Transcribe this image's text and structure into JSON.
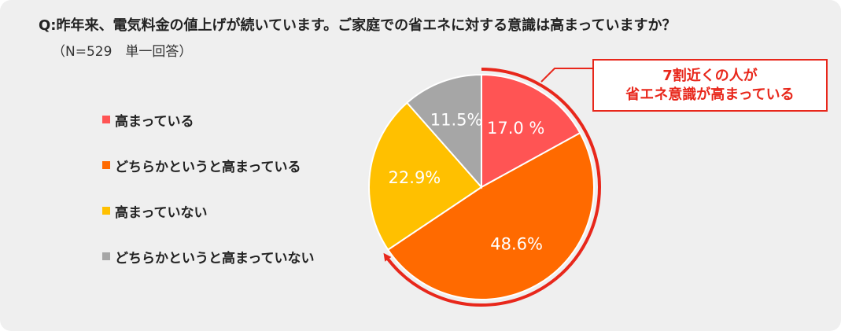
{
  "question": "Q:昨年来、電気料金の値上げが続いています。ご家庭での省エネに対する意識は高まっていますか？",
  "sample_note": "（N=529　単一回答）",
  "callout": {
    "line1": "7割近くの人が",
    "line2": "省エネ意識が高まっている"
  },
  "colors": {
    "accent": "#e8271b",
    "panel": "#efefef"
  },
  "chart_data": {
    "type": "pie",
    "unit": "%",
    "legend_position": "left",
    "slices": [
      {
        "label": "高まっている",
        "value": 17.0,
        "value_text": "17.0 %",
        "color": "#ff5454"
      },
      {
        "label": "どちらかというと高まっている",
        "value": 48.6,
        "value_text": "48.6%",
        "color": "#ff6a00"
      },
      {
        "label": "高まっていない",
        "value": 22.9,
        "value_text": "22.9%",
        "color": "#ffc000"
      },
      {
        "label": "どちらかというと高まっていない",
        "value": 11.5,
        "value_text": "11.5%",
        "color": "#a6a6a6"
      }
    ]
  }
}
